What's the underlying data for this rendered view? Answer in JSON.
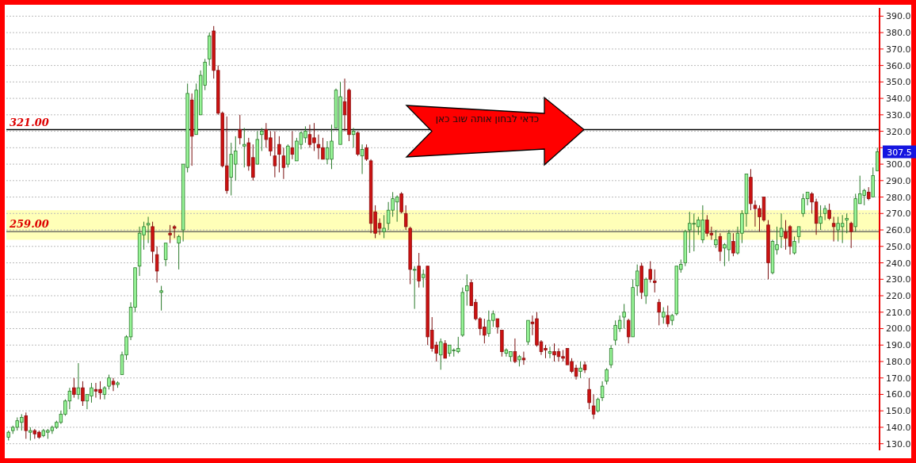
{
  "chart_data": {
    "type": "candlestick",
    "categories": [
      null,
      null,
      null,
      null,
      null,
      null,
      null,
      null,
      null,
      null,
      null,
      null,
      null,
      null,
      null,
      null,
      null,
      null,
      null,
      null,
      null,
      null,
      null,
      null,
      null,
      null,
      null,
      null,
      null,
      null,
      null,
      null,
      null,
      null,
      null,
      null,
      null,
      null,
      null,
      null,
      null,
      null,
      null,
      null,
      null,
      null,
      null,
      null,
      null,
      null,
      null,
      null,
      null,
      null,
      null,
      null,
      null,
      null,
      null,
      null,
      null,
      null,
      null,
      null,
      null,
      null,
      null,
      null,
      null,
      null,
      null,
      null,
      null,
      null,
      null,
      null,
      null,
      null,
      null,
      null,
      null,
      null,
      null,
      null,
      null,
      null,
      null,
      null,
      null,
      null,
      null,
      null,
      null,
      null,
      null,
      null,
      null,
      null,
      null,
      null,
      null,
      null,
      null,
      null,
      null,
      null,
      null,
      null,
      null,
      null,
      null,
      null,
      null,
      null,
      null,
      null,
      null,
      null,
      null,
      null,
      null,
      null,
      null,
      null,
      null,
      null,
      null,
      null,
      null,
      null,
      null,
      null,
      null,
      null,
      null,
      null,
      null,
      null,
      null,
      null,
      null,
      null,
      null,
      null,
      null,
      null,
      null,
      null,
      null,
      null,
      null,
      null,
      null,
      null,
      null,
      null,
      null,
      null,
      null,
      null,
      null,
      null,
      null,
      null,
      null,
      null,
      null,
      null,
      null,
      null,
      null,
      null,
      null,
      null,
      null,
      null,
      null,
      null,
      null,
      null,
      null,
      null,
      null,
      null,
      null,
      null,
      null,
      null,
      null,
      null,
      null,
      null,
      null,
      null,
      null,
      null,
      null,
      null,
      null,
      null
    ],
    "ohlc": [
      [
        134,
        138,
        132,
        137
      ],
      [
        138,
        141,
        136,
        140
      ],
      [
        140,
        146,
        138,
        144
      ],
      [
        143,
        148,
        138,
        146
      ],
      [
        147,
        149,
        133,
        138
      ],
      [
        137,
        140,
        132,
        138
      ],
      [
        138,
        139,
        133,
        136
      ],
      [
        137,
        138,
        133,
        134
      ],
      [
        135,
        139,
        134,
        138
      ],
      [
        137,
        139,
        133,
        138
      ],
      [
        138,
        141,
        136,
        140
      ],
      [
        140,
        144,
        139,
        143
      ],
      [
        143,
        150,
        142,
        148
      ],
      [
        148,
        157,
        147,
        156
      ],
      [
        156,
        164,
        151,
        162
      ],
      [
        164,
        170,
        158,
        160
      ],
      [
        160,
        179,
        157,
        164
      ],
      [
        164,
        168,
        153,
        156
      ],
      [
        156,
        160,
        151,
        160
      ],
      [
        159,
        167,
        155,
        164
      ],
      [
        163,
        167,
        158,
        162
      ],
      [
        163,
        168,
        157,
        161
      ],
      [
        160,
        165,
        157,
        164
      ],
      [
        165,
        172,
        163,
        170
      ],
      [
        168,
        170,
        162,
        166
      ],
      [
        166,
        168,
        164,
        167
      ],
      [
        172,
        186,
        172,
        184
      ],
      [
        184,
        196,
        181,
        195
      ],
      [
        195,
        216,
        193,
        213
      ],
      [
        213,
        237,
        210,
        237
      ],
      [
        238,
        262,
        232,
        258
      ],
      [
        257,
        265,
        248,
        262
      ],
      [
        263,
        268,
        252,
        264
      ],
      [
        262,
        265,
        240,
        247
      ],
      [
        245,
        250,
        228,
        235
      ],
      [
        222,
        226,
        211,
        223
      ],
      [
        242,
        252,
        238,
        252
      ],
      [
        258,
        263,
        252,
        257
      ],
      [
        262,
        263,
        255,
        261
      ],
      [
        252,
        257,
        236,
        256
      ],
      [
        260,
        300,
        253,
        300
      ],
      [
        298,
        349,
        295,
        343
      ],
      [
        339,
        343,
        299,
        317
      ],
      [
        318,
        349,
        318,
        345
      ],
      [
        330,
        357,
        330,
        354
      ],
      [
        348,
        364,
        345,
        362
      ],
      [
        364,
        380,
        360,
        378
      ],
      [
        381,
        384,
        352,
        357
      ],
      [
        357,
        360,
        330,
        331
      ],
      [
        331,
        332,
        298,
        299
      ],
      [
        299,
        329,
        282,
        284
      ],
      [
        292,
        313,
        281,
        306
      ],
      [
        300,
        317,
        290,
        308
      ],
      [
        321,
        330,
        312,
        316
      ],
      [
        311,
        322,
        298,
        312
      ],
      [
        313,
        316,
        296,
        299
      ],
      [
        304,
        312,
        290,
        292
      ],
      [
        300,
        320,
        300,
        315
      ],
      [
        318,
        322,
        308,
        320
      ],
      [
        321,
        325,
        310,
        315
      ],
      [
        316,
        320,
        305,
        308
      ],
      [
        305,
        320,
        292,
        299
      ],
      [
        312,
        317,
        295,
        306
      ],
      [
        305,
        310,
        291,
        298
      ],
      [
        300,
        312,
        298,
        311
      ],
      [
        310,
        320,
        303,
        306
      ],
      [
        302,
        316,
        302,
        314
      ],
      [
        312,
        320,
        309,
        319
      ],
      [
        316,
        323,
        313,
        320
      ],
      [
        318,
        324,
        310,
        312
      ],
      [
        316,
        325,
        308,
        313
      ],
      [
        312,
        318,
        303,
        310
      ],
      [
        310,
        316,
        303,
        303
      ],
      [
        303,
        314,
        300,
        310
      ],
      [
        303,
        324,
        297,
        314
      ],
      [
        322,
        346,
        322,
        345
      ],
      [
        312,
        350,
        312,
        341
      ],
      [
        338,
        352,
        320,
        330
      ],
      [
        345,
        346,
        314,
        318
      ],
      [
        318,
        322,
        310,
        320
      ],
      [
        319,
        320,
        305,
        306
      ],
      [
        305,
        312,
        294,
        309
      ],
      [
        310,
        312,
        302,
        303
      ],
      [
        302,
        303,
        258,
        264
      ],
      [
        271,
        275,
        255,
        258
      ],
      [
        264,
        267,
        257,
        261
      ],
      [
        259,
        269,
        255,
        261
      ],
      [
        264,
        277,
        260,
        272
      ],
      [
        272,
        283,
        268,
        279
      ],
      [
        277,
        281,
        265,
        280
      ],
      [
        282,
        283,
        270,
        271
      ],
      [
        270,
        275,
        260,
        262
      ],
      [
        261,
        262,
        227,
        236
      ],
      [
        236,
        238,
        212,
        236
      ],
      [
        238,
        246,
        225,
        229
      ],
      [
        231,
        236,
        225,
        233
      ],
      [
        238,
        238,
        190,
        195
      ],
      [
        199,
        207,
        186,
        188
      ],
      [
        190,
        192,
        180,
        185
      ],
      [
        184,
        194,
        175,
        192
      ],
      [
        191,
        193,
        182,
        182
      ],
      [
        185,
        190,
        183,
        190
      ],
      [
        187,
        188,
        183,
        187
      ],
      [
        186,
        195,
        185,
        188
      ],
      [
        196,
        225,
        195,
        222
      ],
      [
        223,
        233,
        214,
        226
      ],
      [
        228,
        230,
        214,
        214
      ],
      [
        216,
        218,
        205,
        206
      ],
      [
        206,
        207,
        196,
        200
      ],
      [
        201,
        206,
        191,
        196
      ],
      [
        197,
        211,
        195,
        205
      ],
      [
        205,
        211,
        201,
        209
      ],
      [
        206,
        206,
        197,
        201
      ],
      [
        199,
        199,
        183,
        186
      ],
      [
        185,
        188,
        183,
        187
      ],
      [
        183,
        186,
        180,
        186
      ],
      [
        186,
        194,
        179,
        180
      ],
      [
        181,
        184,
        177,
        183
      ],
      [
        182,
        186,
        178,
        181
      ],
      [
        192,
        205,
        190,
        205
      ],
      [
        204,
        208,
        196,
        203
      ],
      [
        206,
        210,
        189,
        190
      ],
      [
        192,
        193,
        184,
        186
      ],
      [
        188,
        190,
        182,
        187
      ],
      [
        185,
        189,
        182,
        186
      ],
      [
        186,
        191,
        180,
        184
      ],
      [
        186,
        188,
        180,
        183
      ],
      [
        183,
        187,
        180,
        182
      ],
      [
        188,
        188,
        178,
        178
      ],
      [
        180,
        182,
        173,
        174
      ],
      [
        176,
        178,
        169,
        171
      ],
      [
        174,
        180,
        170,
        176
      ],
      [
        178,
        180,
        173,
        175
      ],
      [
        163,
        170,
        151,
        155
      ],
      [
        153,
        160,
        145,
        148
      ],
      [
        150,
        158,
        149,
        157
      ],
      [
        158,
        168,
        156,
        165
      ],
      [
        168,
        176,
        166,
        175
      ],
      [
        178,
        190,
        176,
        188
      ],
      [
        193,
        205,
        190,
        202
      ],
      [
        200,
        208,
        198,
        205
      ],
      [
        207,
        215,
        200,
        210
      ],
      [
        205,
        206,
        191,
        195
      ],
      [
        195,
        230,
        195,
        225
      ],
      [
        226,
        239,
        220,
        235
      ],
      [
        238,
        240,
        218,
        222
      ],
      [
        220,
        231,
        215,
        230
      ],
      [
        236,
        241,
        228,
        230
      ],
      [
        229,
        236,
        222,
        228
      ],
      [
        216,
        218,
        202,
        210
      ],
      [
        207,
        213,
        203,
        210
      ],
      [
        208,
        214,
        201,
        203
      ],
      [
        205,
        209,
        202,
        208
      ],
      [
        209,
        238,
        208,
        238
      ],
      [
        236,
        242,
        234,
        239
      ],
      [
        240,
        260,
        238,
        259
      ],
      [
        260,
        271,
        246,
        264
      ],
      [
        264,
        270,
        247,
        264
      ],
      [
        262,
        268,
        257,
        266
      ],
      [
        254,
        275,
        252,
        266
      ],
      [
        266,
        269,
        256,
        258
      ],
      [
        258,
        262,
        254,
        257
      ],
      [
        251,
        260,
        249,
        254
      ],
      [
        256,
        258,
        241,
        247
      ],
      [
        249,
        252,
        238,
        251
      ],
      [
        248,
        260,
        241,
        258
      ],
      [
        253,
        258,
        244,
        246
      ],
      [
        246,
        262,
        245,
        258
      ],
      [
        258,
        272,
        252,
        270
      ],
      [
        270,
        294,
        262,
        294
      ],
      [
        292,
        297,
        272,
        276
      ],
      [
        275,
        278,
        262,
        273
      ],
      [
        273,
        275,
        259,
        268
      ],
      [
        280,
        280,
        265,
        266
      ],
      [
        263,
        266,
        230,
        240
      ],
      [
        234,
        254,
        233,
        253
      ],
      [
        248,
        262,
        245,
        251
      ],
      [
        256,
        270,
        249,
        261
      ],
      [
        259,
        266,
        248,
        255
      ],
      [
        262,
        263,
        245,
        250
      ],
      [
        246,
        256,
        245,
        253
      ],
      [
        256,
        262,
        252,
        262
      ],
      [
        270,
        282,
        268,
        279
      ],
      [
        279,
        283,
        275,
        283
      ],
      [
        282,
        283,
        270,
        277
      ],
      [
        277,
        279,
        257,
        264
      ],
      [
        264,
        275,
        260,
        268
      ],
      [
        270,
        275,
        266,
        273
      ],
      [
        272,
        276,
        266,
        267
      ],
      [
        264,
        268,
        253,
        262
      ],
      [
        260,
        268,
        253,
        264
      ],
      [
        262,
        269,
        252,
        264
      ],
      [
        266,
        270,
        258,
        267
      ],
      [
        264,
        265,
        249,
        259
      ],
      [
        262,
        282,
        259,
        279
      ],
      [
        276,
        293,
        276,
        282
      ],
      [
        281,
        285,
        275,
        284
      ],
      [
        283,
        286,
        278,
        279
      ],
      [
        280,
        298,
        280,
        293
      ],
      [
        296,
        310,
        296,
        307.5
      ]
    ],
    "ylim": [
      126,
      395
    ],
    "yticks": [
      {
        "value": 130,
        "label": "130.0"
      },
      {
        "value": 140,
        "label": "140.0"
      },
      {
        "value": 150,
        "label": "150.0"
      },
      {
        "value": 160,
        "label": "160.0"
      },
      {
        "value": 170,
        "label": "170.0"
      },
      {
        "value": 180,
        "label": "180.0"
      },
      {
        "value": 190,
        "label": "190.0"
      },
      {
        "value": 200,
        "label": "200.0"
      },
      {
        "value": 210,
        "label": "210.0"
      },
      {
        "value": 220,
        "label": "220.0"
      },
      {
        "value": 230,
        "label": "230.0"
      },
      {
        "value": 240,
        "label": "240.0"
      },
      {
        "value": 250,
        "label": "250.0"
      },
      {
        "value": 260,
        "label": "260.0"
      },
      {
        "value": 270,
        "label": "270.0"
      },
      {
        "value": 280,
        "label": "280.0"
      },
      {
        "value": 290,
        "label": "290.0"
      },
      {
        "value": 300,
        "label": "300.0"
      },
      {
        "value": 310,
        "label": null
      },
      {
        "value": 320,
        "label": "320.0"
      },
      {
        "value": 330,
        "label": "330.0"
      },
      {
        "value": 340,
        "label": "340.0"
      },
      {
        "value": 350,
        "label": "350.0"
      },
      {
        "value": 360,
        "label": "360.0"
      },
      {
        "value": 370,
        "label": "370.0"
      },
      {
        "value": 380,
        "label": "380.0"
      },
      {
        "value": 390,
        "label": "390.0"
      }
    ],
    "grid": "y",
    "ref_lines": [
      {
        "axis": "y",
        "value": 321,
        "label": "321.00",
        "color": "#000000"
      },
      {
        "axis": "y",
        "value": 259,
        "label": "259.00",
        "color": "#555555"
      }
    ],
    "bands": [
      {
        "axis": "y",
        "from": 254,
        "to": 272,
        "color": "#ffff33"
      }
    ],
    "annotations": [
      "כדאי לבחון אותה שוב כאן",
      "307.5"
    ]
  }
}
